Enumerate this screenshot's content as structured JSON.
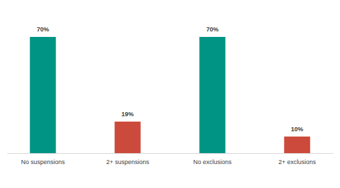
{
  "chart_data": {
    "type": "bar",
    "categories": [
      "No suspensions",
      "2+ suspensions",
      "No exclusions",
      "2+ exclusions"
    ],
    "values": [
      70,
      19,
      70,
      10
    ],
    "value_labels": [
      "70%",
      "19%",
      "70%",
      "10%"
    ],
    "colors": [
      "#009485",
      "#cc4a3b",
      "#009485",
      "#cc4a3b"
    ],
    "ylim": [
      0,
      70
    ],
    "data_labels": true,
    "tick_labels": "x"
  }
}
